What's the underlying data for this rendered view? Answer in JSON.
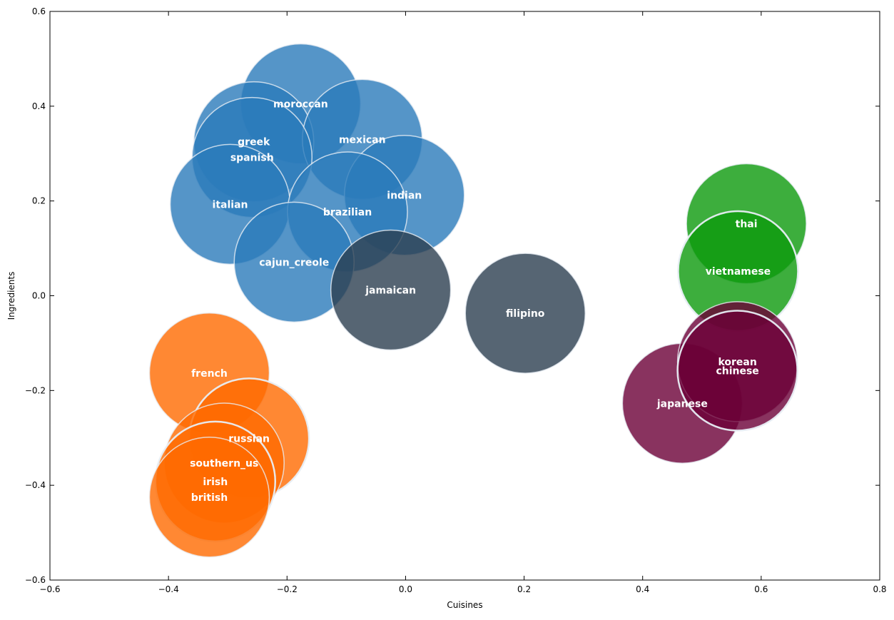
{
  "chart_data": {
    "type": "scatter",
    "title": "",
    "xlabel": "Cuisines",
    "ylabel": "Ingredients",
    "xlim": [
      -0.6,
      0.8
    ],
    "ylim": [
      -0.6,
      0.6
    ],
    "xticks": [
      -0.6,
      -0.4,
      -0.2,
      0.0,
      0.2,
      0.4,
      0.6,
      0.8
    ],
    "yticks": [
      -0.6,
      -0.4,
      -0.2,
      0.0,
      0.2,
      0.4,
      0.6
    ],
    "xtick_labels": [
      "−0.6",
      "−0.4",
      "−0.2",
      "0.0",
      "0.2",
      "0.4",
      "0.6",
      "0.8"
    ],
    "ytick_labels": [
      "−0.6",
      "−0.4",
      "−0.2",
      "0.0",
      "0.2",
      "0.4",
      "0.6"
    ],
    "grid": false,
    "legend": "none",
    "colors": {
      "blue": "#2b7bba",
      "slate": "#2c3e50",
      "orange": "#ff6a00",
      "green": "#0d9a0d",
      "maroon": "#6b0037",
      "outline": "#e8eef4"
    },
    "points": [
      {
        "label": "moroccan",
        "x": -0.177,
        "y": 0.405,
        "color": "blue",
        "alpha": 0.8,
        "highlight": false
      },
      {
        "label": "greek",
        "x": -0.256,
        "y": 0.325,
        "color": "blue",
        "alpha": 0.8,
        "highlight": false
      },
      {
        "label": "mexican",
        "x": -0.073,
        "y": 0.33,
        "color": "blue",
        "alpha": 0.8,
        "highlight": false
      },
      {
        "label": "indian",
        "x": -0.002,
        "y": 0.212,
        "color": "blue",
        "alpha": 0.8,
        "highlight": false
      },
      {
        "label": "spanish",
        "x": -0.259,
        "y": 0.292,
        "color": "blue",
        "alpha": 0.8,
        "highlight": false
      },
      {
        "label": "italian",
        "x": -0.296,
        "y": 0.193,
        "color": "blue",
        "alpha": 0.8,
        "highlight": false
      },
      {
        "label": "brazilian",
        "x": -0.098,
        "y": 0.177,
        "color": "blue",
        "alpha": 0.8,
        "highlight": false
      },
      {
        "label": "cajun_creole",
        "x": -0.188,
        "y": 0.071,
        "color": "blue",
        "alpha": 0.8,
        "highlight": false
      },
      {
        "label": "jamaican",
        "x": -0.025,
        "y": 0.012,
        "color": "slate",
        "alpha": 0.8,
        "highlight": false
      },
      {
        "label": "filipino",
        "x": 0.202,
        "y": -0.037,
        "color": "slate",
        "alpha": 0.8,
        "highlight": false
      },
      {
        "label": "thai",
        "x": 0.575,
        "y": 0.152,
        "color": "green",
        "alpha": 0.8,
        "highlight": false
      },
      {
        "label": "vietnamese",
        "x": 0.561,
        "y": 0.052,
        "color": "green",
        "alpha": 0.8,
        "highlight": true
      },
      {
        "label": "french",
        "x": -0.331,
        "y": -0.163,
        "color": "orange",
        "alpha": 0.8,
        "highlight": false
      },
      {
        "label": "russian",
        "x": -0.264,
        "y": -0.301,
        "color": "orange",
        "alpha": 0.8,
        "highlight": true
      },
      {
        "label": "southern_us",
        "x": -0.306,
        "y": -0.353,
        "color": "orange",
        "alpha": 0.8,
        "highlight": false
      },
      {
        "label": "irish",
        "x": -0.321,
        "y": -0.392,
        "color": "orange",
        "alpha": 0.8,
        "highlight": true
      },
      {
        "label": "british",
        "x": -0.331,
        "y": -0.425,
        "color": "orange",
        "alpha": 0.8,
        "highlight": false
      },
      {
        "label": "japanese",
        "x": 0.467,
        "y": -0.227,
        "color": "maroon",
        "alpha": 0.8,
        "highlight": false
      },
      {
        "label": "korean",
        "x": 0.56,
        "y": -0.139,
        "color": "maroon",
        "alpha": 0.8,
        "highlight": false
      },
      {
        "label": "chinese",
        "x": 0.56,
        "y": -0.158,
        "color": "maroon",
        "alpha": 0.8,
        "highlight": true
      }
    ]
  }
}
